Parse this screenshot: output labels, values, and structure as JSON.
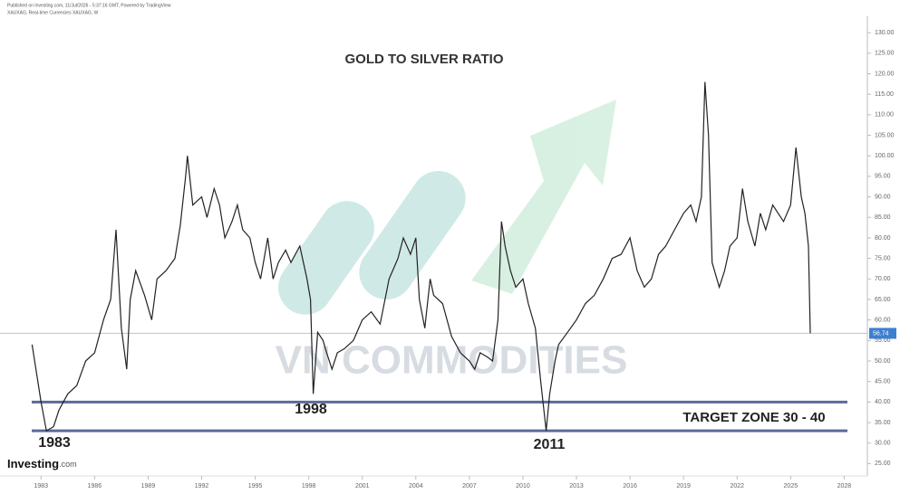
{
  "chart_data": {
    "type": "line",
    "header_lines": [
      "Published on Investing.com, 11/Jul/2026 - 5:37:16 GMT, Powered by TradingView",
      "XAUXAG, Real-time Currencies XAUXAG, W"
    ],
    "title": "GOLD TO SILVER RATIO",
    "watermark": "VN COMMODITIES",
    "logo": [
      "Investing",
      ".com"
    ],
    "annotations": [
      "1983",
      "1998",
      "2011",
      "TARGET ZONE 30 - 40"
    ],
    "color": "#222222",
    "x": [
      1982.5,
      1983,
      1983.3,
      1983.7,
      1984,
      1984.5,
      1985,
      1985.5,
      1986,
      1986.5,
      1986.9,
      1987.2,
      1987.5,
      1987.8,
      1988,
      1988.3,
      1988.8,
      1989.2,
      1989.5,
      1990,
      1990.5,
      1990.8,
      1991.1,
      1991.2,
      1991.5,
      1992,
      1992.3,
      1992.7,
      1993,
      1993.3,
      1993.7,
      1994,
      1994.3,
      1994.7,
      1995,
      1995.3,
      1995.7,
      1996,
      1996.3,
      1996.7,
      1997,
      1997.5,
      1997.9,
      1998.1,
      1998.25,
      1998.5,
      1998.8,
      1999,
      1999.3,
      1999.6,
      2000,
      2000.5,
      2001,
      2001.5,
      2002,
      2002.5,
      2003,
      2003.3,
      2003.7,
      2004,
      2004.2,
      2004.5,
      2004.8,
      2005,
      2005.5,
      2006,
      2006.5,
      2007,
      2007.3,
      2007.6,
      2008,
      2008.3,
      2008.6,
      2008.8,
      2009,
      2009.3,
      2009.6,
      2010,
      2010.3,
      2010.7,
      2011,
      2011.3,
      2011.5,
      2011.8,
      2012,
      2012.5,
      2013,
      2013.5,
      2014,
      2014.5,
      2015,
      2015.5,
      2016,
      2016.4,
      2016.8,
      2017.2,
      2017.6,
      2018,
      2018.5,
      2019,
      2019.4,
      2019.7,
      2020,
      2020.2,
      2020.4,
      2020.6,
      2021,
      2021.3,
      2021.6,
      2022,
      2022.3,
      2022.6,
      2023,
      2023.3,
      2023.6,
      2024,
      2024.3,
      2024.6,
      2025,
      2025.3,
      2025.6,
      2025.8,
      2026,
      2026.1
    ],
    "values": [
      54,
      40,
      33,
      34,
      38,
      42,
      44,
      50,
      52,
      60,
      65,
      82,
      58,
      48,
      65,
      72,
      66,
      60,
      70,
      72,
      75,
      83,
      95,
      100,
      88,
      90,
      85,
      92,
      88,
      80,
      84,
      88,
      82,
      80,
      74,
      70,
      80,
      70,
      74,
      77,
      74,
      78,
      70,
      65,
      42,
      57,
      55,
      52,
      48,
      52,
      53,
      55,
      60,
      62,
      59,
      70,
      75,
      80,
      76,
      80,
      65,
      58,
      70,
      66,
      64,
      56,
      52,
      50,
      48,
      52,
      51,
      50,
      60,
      84,
      78,
      72,
      68,
      70,
      64,
      58,
      45,
      33,
      42,
      50,
      54,
      57,
      60,
      64,
      66,
      70,
      75,
      76,
      80,
      72,
      68,
      70,
      76,
      78,
      82,
      86,
      88,
      84,
      90,
      118,
      105,
      74,
      68,
      72,
      78,
      80,
      92,
      84,
      78,
      86,
      82,
      88,
      86,
      84,
      88,
      102,
      90,
      86,
      78,
      56.74
    ],
    "xlim": [
      1980.7,
      2029.3
    ],
    "xticks": [
      1983,
      1986,
      1989,
      1992,
      1995,
      1998,
      2001,
      2004,
      2007,
      2010,
      2013,
      2016,
      2019,
      2022,
      2025,
      2028
    ],
    "ylim": [
      22,
      134
    ],
    "yticks": [
      {
        "value": 25,
        "label": "25.00"
      },
      {
        "value": 30,
        "label": "30.00"
      },
      {
        "value": 35,
        "label": "35.00"
      },
      {
        "value": 40,
        "label": "40.00"
      },
      {
        "value": 45,
        "label": "45.00"
      },
      {
        "value": 50,
        "label": "50.00"
      },
      {
        "value": 55,
        "label": "55.00"
      },
      {
        "value": 60,
        "label": "60.00"
      },
      {
        "value": 65,
        "label": "65.00"
      },
      {
        "value": 70,
        "label": "70.00"
      },
      {
        "value": 75,
        "label": "75.00"
      },
      {
        "value": 80,
        "label": "80.00"
      },
      {
        "value": 85,
        "label": "85.00"
      },
      {
        "value": 90,
        "label": "90.00"
      },
      {
        "value": 95,
        "label": "95.00"
      },
      {
        "value": 100,
        "label": "100.00"
      },
      {
        "value": 105,
        "label": "105.00"
      },
      {
        "value": 110,
        "label": "110.00"
      },
      {
        "value": 115,
        "label": "115.00"
      },
      {
        "value": 120,
        "label": "120.00"
      },
      {
        "value": 125,
        "label": "125.00"
      },
      {
        "value": 130,
        "label": "130.00"
      }
    ],
    "hlines": [
      40,
      33
    ],
    "hline_color": "#5a6a9a",
    "last_value": {
      "value": 56.74,
      "label": "56.74"
    },
    "last_value_color": "#3d7fd1"
  }
}
